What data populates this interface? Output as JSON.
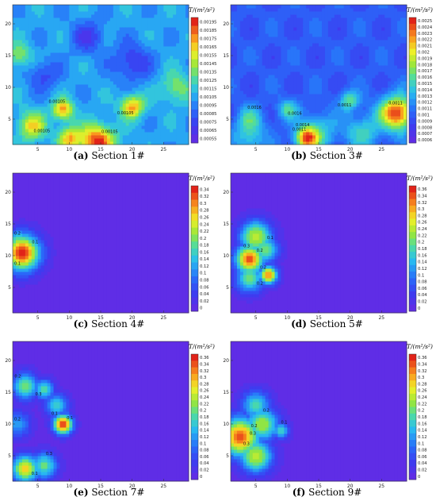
{
  "colorbar_title": "T/(m²/s²)",
  "chart_data": [
    {
      "type": "heatmap",
      "id": "a",
      "caption_letter": "(a)",
      "caption_text": "Section 1#",
      "x_ticks": [
        5,
        10,
        15,
        20,
        25
      ],
      "y_ticks": [
        5,
        10,
        15,
        20
      ],
      "xlim": [
        1,
        29
      ],
      "ylim": [
        1,
        23
      ],
      "colorbar_ticks": [
        "0.00195",
        "0.00185",
        "0.00175",
        "0.00165",
        "0.00155",
        "0.00145",
        "0.00135",
        "0.00125",
        "0.00115",
        "0.00105",
        "0.00095",
        "0.00085",
        "0.00075",
        "0.00065",
        "0.00055"
      ],
      "contour_labels": [
        "0.00105",
        "0.00105",
        "0.00105",
        "0.00105"
      ],
      "background_level": 0.35,
      "hotspots": [
        {
          "x": 14.5,
          "y": 1.5,
          "r": 2.6,
          "v": 1.0
        },
        {
          "x": 9,
          "y": 6.5,
          "r": 1.6,
          "v": 0.85
        },
        {
          "x": 20,
          "y": 7,
          "r": 1.8,
          "v": 0.85
        },
        {
          "x": 4,
          "y": 4,
          "r": 2.2,
          "v": 0.75
        },
        {
          "x": 2,
          "y": 15,
          "r": 2.0,
          "v": 0.6
        },
        {
          "x": 27,
          "y": 10,
          "r": 2.4,
          "v": 0.6
        },
        {
          "x": 10,
          "y": 2,
          "r": 1.8,
          "v": 0.8
        },
        {
          "x": 13,
          "y": 18,
          "r": 2.5,
          "v": 0.1
        },
        {
          "x": 20,
          "y": 14,
          "r": 3.0,
          "v": 0.1
        },
        {
          "x": 6,
          "y": 12,
          "r": 2.5,
          "v": 0.15
        }
      ]
    },
    {
      "type": "heatmap",
      "id": "b",
      "caption_letter": "(b)",
      "caption_text": "Section 3#",
      "x_ticks": [
        5,
        10,
        15,
        20,
        25
      ],
      "y_ticks": [
        5,
        10,
        15,
        20
      ],
      "xlim": [
        1,
        29
      ],
      "ylim": [
        1,
        23
      ],
      "colorbar_ticks": [
        "0.0025",
        "0.0024",
        "0.0023",
        "0.0022",
        "0.0021",
        "0.002",
        "0.0019",
        "0.0018",
        "0.0017",
        "0.0016",
        "0.0015",
        "0.0014",
        "0.0013",
        "0.0012",
        "0.0011",
        "0.001",
        "0.0009",
        "0.0008",
        "0.0007",
        "0.0006"
      ],
      "contour_labels": [
        "0.0011",
        "0.0011",
        "0.0011",
        "0.0016",
        "0.0016",
        "0.0014"
      ],
      "background_level": 0.2,
      "hotspots": [
        {
          "x": 27.5,
          "y": 6,
          "r": 2.6,
          "v": 1.0
        },
        {
          "x": 13,
          "y": 2,
          "r": 1.8,
          "v": 0.85
        },
        {
          "x": 20,
          "y": 8,
          "r": 1.5,
          "v": 0.55
        },
        {
          "x": 10,
          "y": 6.5,
          "r": 1.6,
          "v": 0.5
        },
        {
          "x": 4,
          "y": 5,
          "r": 2.0,
          "v": 0.45
        },
        {
          "x": 15,
          "y": 3,
          "r": 3.0,
          "v": 0.45
        },
        {
          "x": 22,
          "y": 3,
          "r": 3.0,
          "v": 0.45
        },
        {
          "x": 4,
          "y": 2,
          "r": 2.5,
          "v": 0.45
        }
      ]
    },
    {
      "type": "heatmap",
      "id": "c",
      "caption_letter": "(c)",
      "caption_text": "Section 4#",
      "x_ticks": [
        5,
        10,
        15,
        20,
        25
      ],
      "y_ticks": [
        5,
        10,
        15,
        20
      ],
      "xlim": [
        1,
        29
      ],
      "ylim": [
        1,
        23
      ],
      "colorbar_ticks": [
        "0.34",
        "0.32",
        "0.3",
        "0.28",
        "0.26",
        "0.24",
        "0.22",
        "0.2",
        "0.18",
        "0.16",
        "0.14",
        "0.12",
        "0.1",
        "0.08",
        "0.06",
        "0.04",
        "0.02",
        "0"
      ],
      "contour_labels": [
        "0.1",
        "0.2",
        "0.1"
      ],
      "background_level": 0.0,
      "hotspots": [
        {
          "x": 2.5,
          "y": 10.5,
          "r": 2.8,
          "v": 1.0
        },
        {
          "x": 2.0,
          "y": 12,
          "r": 2.0,
          "v": 0.6
        }
      ]
    },
    {
      "type": "heatmap",
      "id": "d",
      "caption_letter": "(d)",
      "caption_text": "Section 5#",
      "x_ticks": [
        5,
        10,
        15,
        20,
        25
      ],
      "y_ticks": [
        5,
        10,
        15,
        20
      ],
      "xlim": [
        1,
        29
      ],
      "ylim": [
        1,
        23
      ],
      "colorbar_ticks": [
        "0.36",
        "0.34",
        "0.32",
        "0.3",
        "0.28",
        "0.26",
        "0.24",
        "0.22",
        "0.2",
        "0.18",
        "0.16",
        "0.14",
        "0.12",
        "0.1",
        "0.08",
        "0.06",
        "0.04",
        "0.02",
        "0"
      ],
      "contour_labels": [
        "0.2",
        "0.2",
        "0.3",
        "0.2",
        "0.1"
      ],
      "background_level": 0.0,
      "hotspots": [
        {
          "x": 4,
          "y": 9.5,
          "r": 2.2,
          "v": 0.95
        },
        {
          "x": 7,
          "y": 7,
          "r": 1.4,
          "v": 0.9
        },
        {
          "x": 5,
          "y": 13,
          "r": 2.5,
          "v": 0.7
        },
        {
          "x": 4,
          "y": 6.5,
          "r": 2.2,
          "v": 0.55
        },
        {
          "x": 6.5,
          "y": 11,
          "r": 2.0,
          "v": 0.6
        }
      ]
    },
    {
      "type": "heatmap",
      "id": "e",
      "caption_letter": "(e)",
      "caption_text": "Section 7#",
      "x_ticks": [
        5,
        10,
        15,
        20,
        25
      ],
      "y_ticks": [
        5,
        10,
        15,
        20
      ],
      "xlim": [
        1,
        29
      ],
      "ylim": [
        1,
        23
      ],
      "colorbar_ticks": [
        "0.36",
        "0.34",
        "0.32",
        "0.3",
        "0.28",
        "0.26",
        "0.24",
        "0.22",
        "0.2",
        "0.18",
        "0.16",
        "0.14",
        "0.12",
        "0.1",
        "0.08",
        "0.06",
        "0.04",
        "0.02",
        "0"
      ],
      "contour_labels": [
        "0.1",
        "0.2",
        "0.3",
        "0.1",
        "0.3",
        "0.2",
        "0.1"
      ],
      "background_level": 0.0,
      "hotspots": [
        {
          "x": 9,
          "y": 10,
          "r": 1.5,
          "v": 1.0
        },
        {
          "x": 3,
          "y": 16,
          "r": 2.0,
          "v": 0.6
        },
        {
          "x": 6,
          "y": 15.5,
          "r": 1.5,
          "v": 0.55
        },
        {
          "x": 3,
          "y": 3,
          "r": 2.0,
          "v": 0.8
        },
        {
          "x": 6,
          "y": 3.5,
          "r": 2.0,
          "v": 0.55
        },
        {
          "x": 1.8,
          "y": 10,
          "r": 2.0,
          "v": 0.35
        },
        {
          "x": 8,
          "y": 13,
          "r": 1.8,
          "v": 0.45
        }
      ]
    },
    {
      "type": "heatmap",
      "id": "f",
      "caption_letter": "(f)",
      "caption_text": "Section 9#",
      "x_ticks": [
        5,
        10,
        15,
        20,
        25
      ],
      "y_ticks": [
        5,
        10,
        15,
        20
      ],
      "xlim": [
        1,
        29
      ],
      "ylim": [
        1,
        23
      ],
      "colorbar_ticks": [
        "0.36",
        "0.34",
        "0.32",
        "0.3",
        "0.28",
        "0.26",
        "0.24",
        "0.22",
        "0.2",
        "0.18",
        "0.16",
        "0.14",
        "0.12",
        "0.1",
        "0.08",
        "0.06",
        "0.04",
        "0.02",
        "0"
      ],
      "contour_labels": [
        "0.2",
        "0.3",
        "0.3",
        "0.2",
        "0.1"
      ],
      "background_level": 0.0,
      "hotspots": [
        {
          "x": 2.5,
          "y": 8,
          "r": 3.0,
          "v": 0.95
        },
        {
          "x": 5,
          "y": 5,
          "r": 2.5,
          "v": 0.7
        },
        {
          "x": 6,
          "y": 10,
          "r": 2.5,
          "v": 0.65
        },
        {
          "x": 5,
          "y": 13,
          "r": 2.2,
          "v": 0.5
        },
        {
          "x": 9,
          "y": 9,
          "r": 1.3,
          "v": 0.45
        }
      ]
    }
  ]
}
